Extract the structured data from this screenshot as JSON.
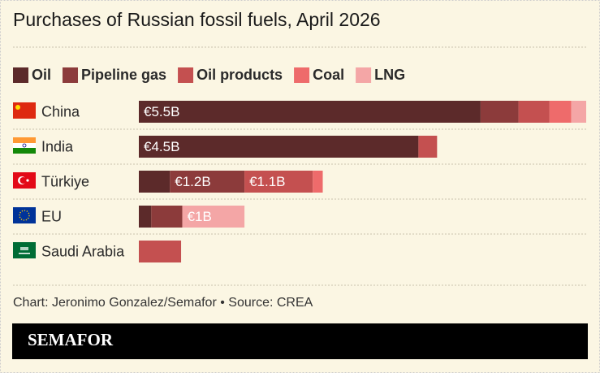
{
  "chart_data": {
    "type": "stacked-bar",
    "orientation": "horizontal",
    "title": "Purchases of Russian fossil fuels, April 2026",
    "categories": [
      "China",
      "India",
      "Türkiye",
      "EU",
      "Saudi Arabia"
    ],
    "series": [
      {
        "name": "Oil",
        "color": "#5c2a2a",
        "values": [
          5.5,
          4.5,
          0.5,
          0.2,
          0
        ],
        "value_labels": [
          "€5.5B",
          "€4.5B",
          null,
          null,
          null
        ]
      },
      {
        "name": "Pipeline gas",
        "color": "#8c3b3b",
        "values": [
          0.61,
          0,
          1.2,
          0.5,
          0
        ],
        "value_labels": [
          null,
          null,
          "€1.2B",
          null,
          null
        ]
      },
      {
        "name": "Oil products",
        "color": "#c45050",
        "values": [
          0.5,
          0.3,
          1.1,
          0,
          0.68
        ],
        "value_labels": [
          null,
          null,
          "€1.1B",
          null,
          null
        ]
      },
      {
        "name": "Coal",
        "color": "#ee6b6b",
        "values": [
          0.35,
          0,
          0.16,
          0,
          0
        ],
        "value_labels": [
          null,
          null,
          null,
          null,
          null
        ]
      },
      {
        "name": "LNG",
        "color": "#f4a6a6",
        "values": [
          0.24,
          0,
          0,
          1.0,
          0
        ],
        "value_labels": [
          null,
          null,
          null,
          "€1B",
          null
        ]
      }
    ],
    "source": "Chart: Jeronimo Gonzalez/Semafor • Source: CREA",
    "brand": "SEMAFOR"
  }
}
